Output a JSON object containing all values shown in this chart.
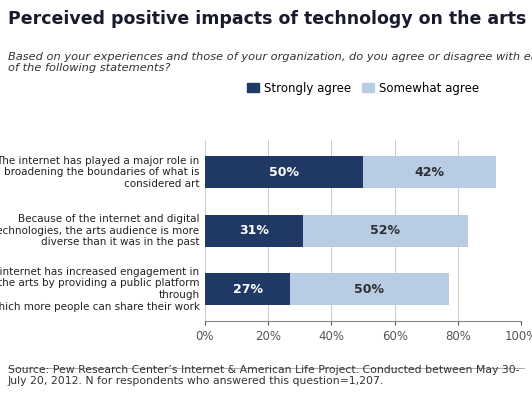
{
  "title": "Perceived positive impacts of technology on the arts",
  "subtitle": "Based on your experiences and those of your organization, do you agree or disagree with each\nof the following statements?",
  "source": "Source: Pew Research Center’s Internet & American Life Project. Conducted between May 30-\nJuly 20, 2012. N for respondents who answered this question=1,207.",
  "categories": [
    "The internet has increased engagement in\nthe arts by providing a public platform\nthrough\nwhich more people can share their work",
    "Because of the internet and digital\ntechnologies, the arts audience is more\ndiverse than it was in the past",
    "The internet has played a major role in\nbroadening the boundaries of what is\nconsidered art"
  ],
  "strongly_agree": [
    50,
    31,
    27
  ],
  "somewhat_agree": [
    42,
    52,
    50
  ],
  "strongly_color": "#1F3864",
  "somewhat_color": "#B8CCE4",
  "bar_height": 0.55,
  "xlim": [
    0,
    100
  ],
  "xticks": [
    0,
    20,
    40,
    60,
    80,
    100
  ],
  "xticklabels": [
    "0%",
    "20%",
    "40%",
    "60%",
    "80%",
    "100%"
  ],
  "legend_labels": [
    "Strongly agree",
    "Somewhat agree"
  ],
  "background_color": "#FFFFFF",
  "title_fontsize": 12.5,
  "subtitle_fontsize": 8.2,
  "source_fontsize": 7.8,
  "category_fontsize": 7.5,
  "bar_label_fontsize": 9,
  "legend_fontsize": 8.5
}
